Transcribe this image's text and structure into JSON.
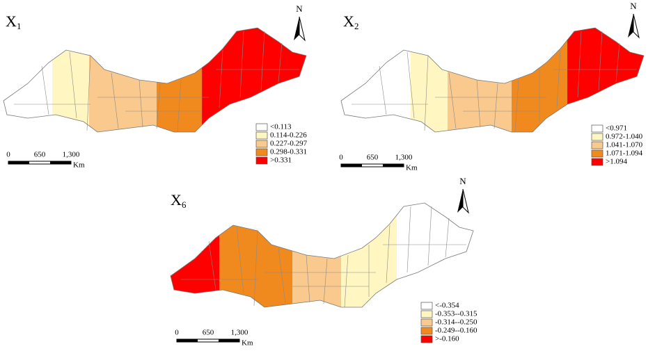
{
  "maps": [
    {
      "label": "X",
      "subscript": "1",
      "north": "N",
      "legend": [
        "<0.113",
        "0.114-0.226",
        "0.227-0.297",
        "0.298-0.331",
        ">0.331"
      ],
      "colors": [
        "#ffffff",
        "#fff6c2",
        "#f9c98d",
        "#f08a1e",
        "#ff0000"
      ],
      "scale": {
        "ticks": [
          "0",
          "650",
          "1,300"
        ],
        "unit": "Km"
      }
    },
    {
      "label": "X",
      "subscript": "2",
      "north": "N",
      "legend": [
        "<0.971",
        "0.972-1.040",
        "1.041-1.070",
        "1.071-1.094",
        ">1.094"
      ],
      "colors": [
        "#ffffff",
        "#fff6c2",
        "#f9c98d",
        "#f08a1e",
        "#ff0000"
      ],
      "scale": {
        "ticks": [
          "0",
          "650",
          "1,300"
        ],
        "unit": "Km"
      }
    },
    {
      "label": "X",
      "subscript": "6",
      "north": "N",
      "legend": [
        "<-0.354",
        "-0.353--0.315",
        "-0.314--0.250",
        "-0.249--0.160",
        ">-0.160"
      ],
      "colors": [
        "#ffffff",
        "#fff6c2",
        "#f9c98d",
        "#f08a1e",
        "#ff0000"
      ],
      "scale": {
        "ticks": [
          "0",
          "650",
          "1,300"
        ],
        "unit": "Km"
      }
    }
  ]
}
